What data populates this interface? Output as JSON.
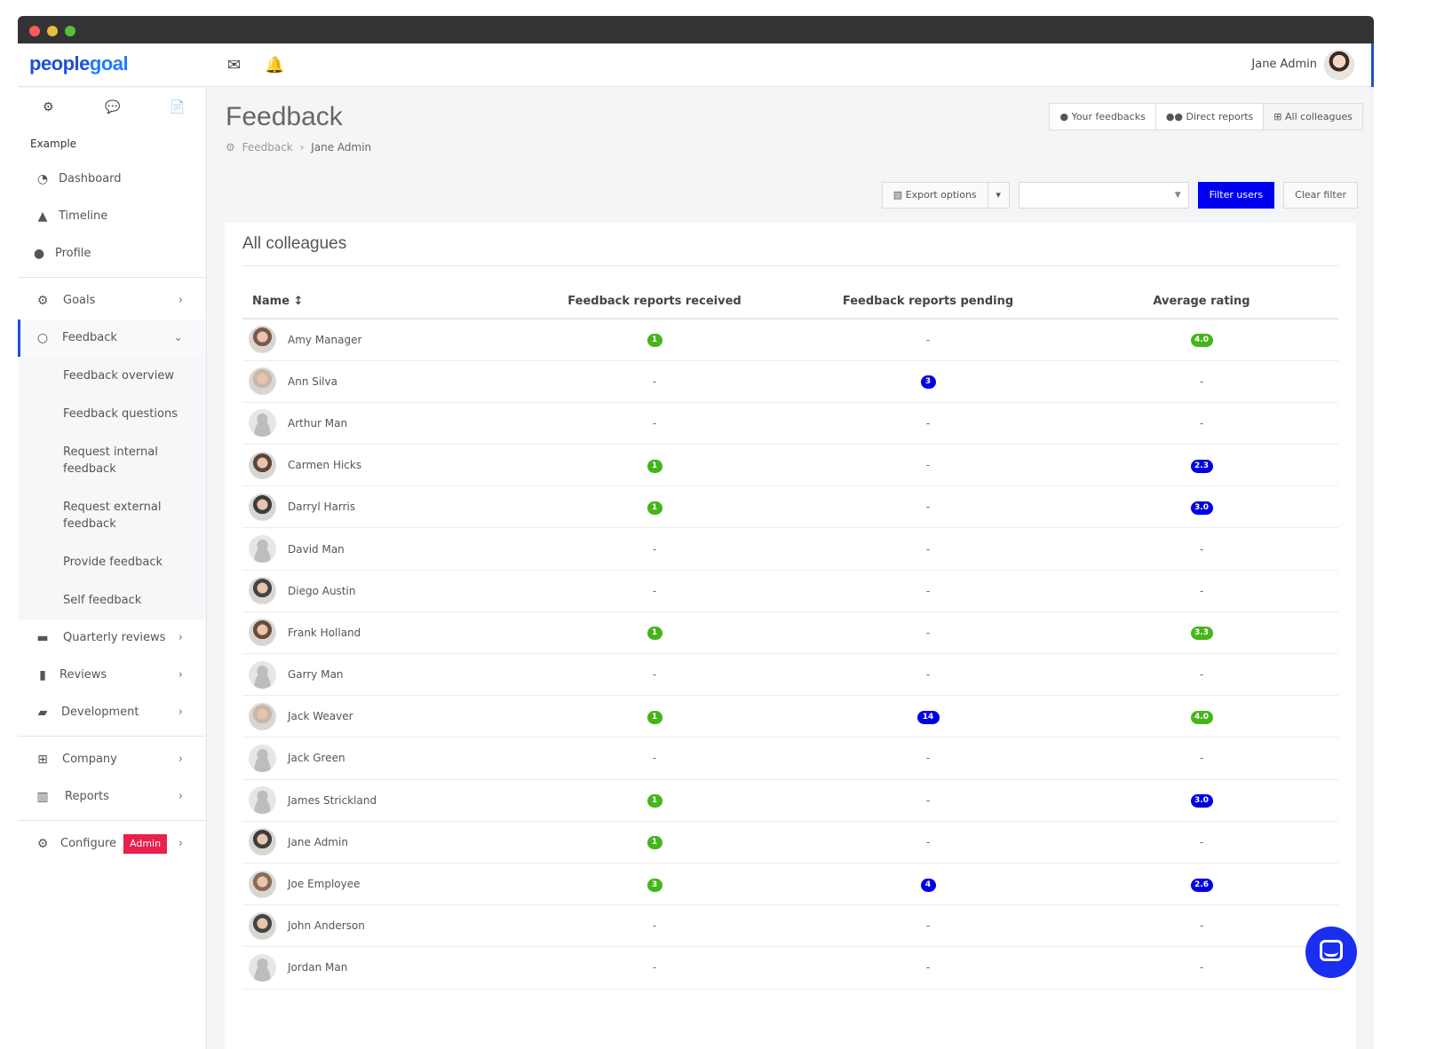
{
  "header": {
    "logo_part1": "people",
    "logo_part2": "goal",
    "mail_icon": "envelope-icon",
    "bell_icon": "bell-icon",
    "user_name": "Jane Admin"
  },
  "sidebar": {
    "workspace": "Example",
    "top_items": [
      {
        "label": "Dashboard",
        "icon": "dashboard-icon"
      },
      {
        "label": "Timeline",
        "icon": "timeline-icon"
      },
      {
        "label": "Profile",
        "icon": "user-icon"
      }
    ],
    "goals": "Goals",
    "feedback": "Feedback",
    "feedback_sub": [
      "Feedback overview",
      "Feedback questions",
      "Request internal feedback",
      "Request external feedback",
      "Provide feedback",
      "Self feedback"
    ],
    "quarterly": "Quarterly reviews",
    "reviews": "Reviews",
    "development": "Development",
    "company": "Company",
    "reports": "Reports",
    "configure": "Configure",
    "admin_badge": "Admin"
  },
  "page": {
    "title": "Feedback",
    "breadcrumb_root": "Feedback",
    "breadcrumb_current": "Jane Admin",
    "tabs": [
      "Your feedbacks",
      "Direct reports",
      "All colleagues"
    ],
    "export": "Export options",
    "filter_users": "Filter users",
    "clear_filter": "Clear filter",
    "card_title": "All colleagues"
  },
  "table": {
    "headers": {
      "name": "Name",
      "received": "Feedback reports received",
      "pending": "Feedback reports pending",
      "rating": "Average rating"
    },
    "rows": [
      {
        "name": "Amy Manager",
        "photo": true,
        "received": "1",
        "pending": "-",
        "rating": "4.0",
        "rating_color": "green"
      },
      {
        "name": "Ann Silva",
        "photo": true,
        "received": "-",
        "pending": "3",
        "rating": "-",
        "rating_color": ""
      },
      {
        "name": "Arthur Man",
        "photo": false,
        "received": "-",
        "pending": "-",
        "rating": "-",
        "rating_color": ""
      },
      {
        "name": "Carmen Hicks",
        "photo": true,
        "received": "1",
        "pending": "-",
        "rating": "2.3",
        "rating_color": "blue"
      },
      {
        "name": "Darryl Harris",
        "photo": true,
        "received": "1",
        "pending": "-",
        "rating": "3.0",
        "rating_color": "blue"
      },
      {
        "name": "David Man",
        "photo": false,
        "received": "-",
        "pending": "-",
        "rating": "-",
        "rating_color": ""
      },
      {
        "name": "Diego Austin",
        "photo": true,
        "received": "-",
        "pending": "-",
        "rating": "-",
        "rating_color": ""
      },
      {
        "name": "Frank Holland",
        "photo": true,
        "received": "1",
        "pending": "-",
        "rating": "3.3",
        "rating_color": "green"
      },
      {
        "name": "Garry Man",
        "photo": false,
        "received": "-",
        "pending": "-",
        "rating": "-",
        "rating_color": ""
      },
      {
        "name": "Jack Weaver",
        "photo": true,
        "received": "1",
        "pending": "14",
        "rating": "4.0",
        "rating_color": "green"
      },
      {
        "name": "Jack Green",
        "photo": false,
        "received": "-",
        "pending": "-",
        "rating": "-",
        "rating_color": ""
      },
      {
        "name": "James Strickland",
        "photo": false,
        "received": "1",
        "pending": "-",
        "rating": "3.0",
        "rating_color": "blue"
      },
      {
        "name": "Jane Admin",
        "photo": true,
        "received": "1",
        "pending": "-",
        "rating": "-",
        "rating_color": ""
      },
      {
        "name": "Joe Employee",
        "photo": true,
        "received": "3",
        "pending": "4",
        "rating": "2.6",
        "rating_color": "blue"
      },
      {
        "name": "John Anderson",
        "photo": true,
        "received": "-",
        "pending": "-",
        "rating": "-",
        "rating_color": ""
      },
      {
        "name": "Jordan Man",
        "photo": false,
        "received": "-",
        "pending": "-",
        "rating": "-",
        "rating_color": ""
      }
    ]
  },
  "colors": {
    "accent": "#1f4fd8",
    "primary_button": "#0000f0",
    "badge_green": "#45b51b",
    "badge_blue": "#0000e6",
    "admin_badge": "#ea1f4c"
  }
}
